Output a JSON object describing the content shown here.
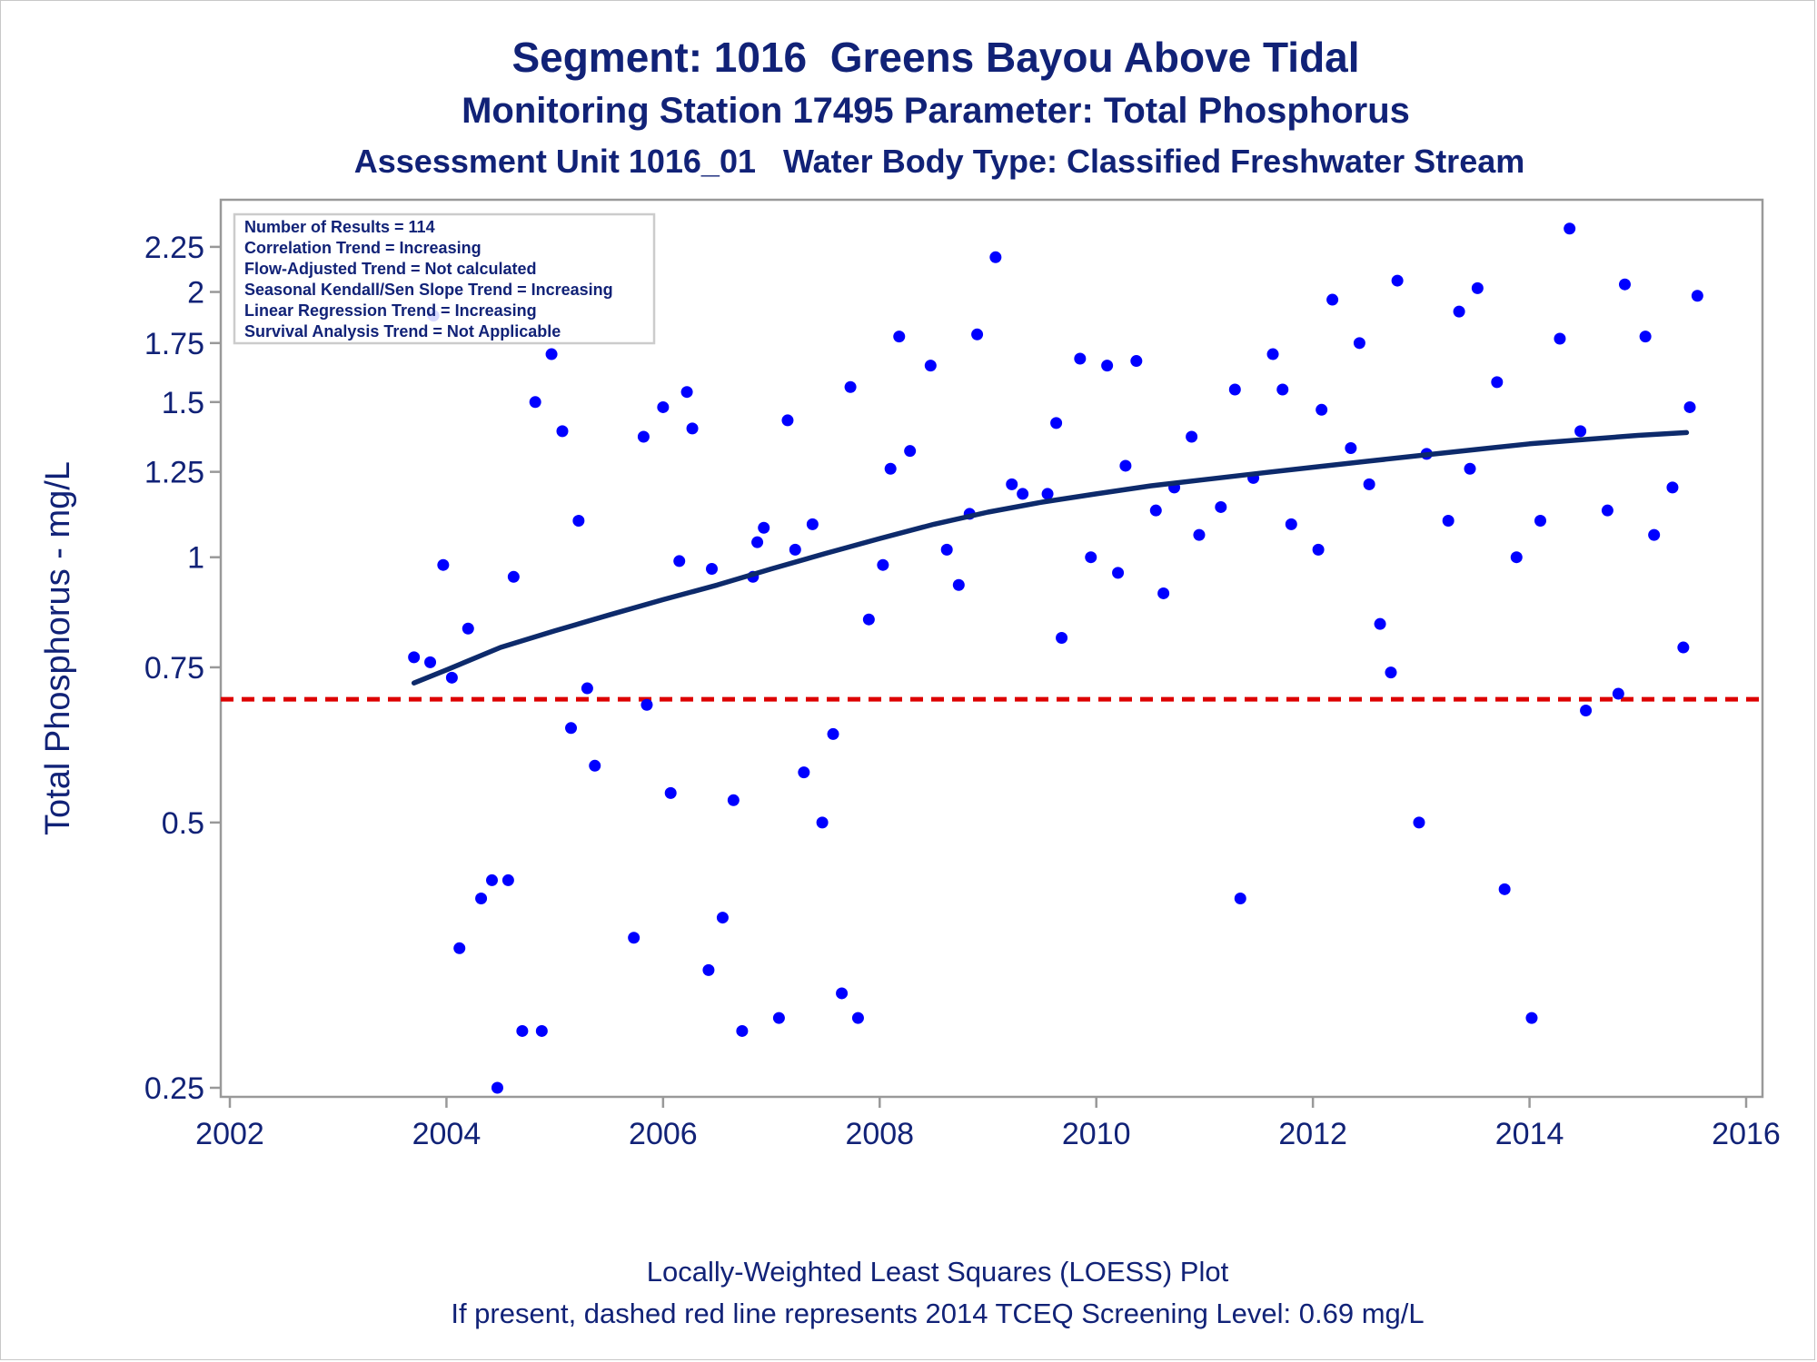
{
  "titles": {
    "line1": "Segment: 1016  Greens Bayou Above Tidal",
    "line2": "Monitoring Station 17495 Parameter: Total Phosphorus",
    "line3": "Assessment Unit 1016_01   Water Body Type: Classified Freshwater Stream"
  },
  "footnotes": {
    "line1": "Locally-Weighted Least Squares (LOESS) Plot",
    "line2": "If present, dashed red line represents 2014 TCEQ Screening Level: 0.69 mg/L"
  },
  "inset_box": {
    "lines": [
      "Number of Results = 114",
      "Correlation Trend = Increasing",
      "Flow-Adjusted Trend = Not calculated",
      "Seasonal Kendall/Sen Slope Trend = Increasing",
      "Linear Regression Trend = Increasing",
      "Survival Analysis Trend = Not Applicable"
    ]
  },
  "colors": {
    "text": "#112277",
    "points": "#0000ff",
    "loess": "#0d2a6b",
    "screening_line": "#dd0000",
    "axis": "#999999"
  },
  "chart_data": {
    "type": "scatter",
    "title": "Segment: 1016  Greens Bayou Above Tidal",
    "ylabel": "Total Phosphorus - mg/L",
    "xlabel": "",
    "y_scale": "log",
    "xlim": [
      2002,
      2016
    ],
    "ylim": [
      0.25,
      2.45
    ],
    "x_ticks": [
      2002,
      2004,
      2006,
      2008,
      2010,
      2012,
      2014,
      2016
    ],
    "y_ticks": [
      0.25,
      0.5,
      0.75,
      1,
      1.25,
      1.5,
      1.75,
      2,
      2.25
    ],
    "grid": false,
    "screening_level": 0.69,
    "points": [
      [
        2003.7,
        0.77
      ],
      [
        2003.85,
        0.76
      ],
      [
        2003.88,
        1.88
      ],
      [
        2003.97,
        0.98
      ],
      [
        2004.05,
        0.73
      ],
      [
        2004.12,
        0.36
      ],
      [
        2004.2,
        0.83
      ],
      [
        2004.32,
        0.41
      ],
      [
        2004.42,
        0.43
      ],
      [
        2004.47,
        0.25
      ],
      [
        2004.57,
        0.43
      ],
      [
        2004.62,
        0.95
      ],
      [
        2004.7,
        0.29
      ],
      [
        2004.82,
        1.5
      ],
      [
        2004.88,
        0.29
      ],
      [
        2004.97,
        1.7
      ],
      [
        2005.07,
        1.39
      ],
      [
        2005.15,
        0.64
      ],
      [
        2005.22,
        1.1
      ],
      [
        2005.3,
        0.71
      ],
      [
        2005.37,
        0.58
      ],
      [
        2005.73,
        0.37
      ],
      [
        2005.82,
        1.37
      ],
      [
        2005.85,
        0.68
      ],
      [
        2006.0,
        1.48
      ],
      [
        2006.07,
        0.54
      ],
      [
        2006.15,
        0.99
      ],
      [
        2006.22,
        1.54
      ],
      [
        2006.27,
        1.4
      ],
      [
        2006.42,
        0.34
      ],
      [
        2006.45,
        0.97
      ],
      [
        2006.55,
        0.39
      ],
      [
        2006.65,
        0.53
      ],
      [
        2006.73,
        0.29
      ],
      [
        2006.83,
        0.95
      ],
      [
        2006.87,
        1.04
      ],
      [
        2006.93,
        1.08
      ],
      [
        2007.07,
        0.3
      ],
      [
        2007.15,
        1.43
      ],
      [
        2007.22,
        1.02
      ],
      [
        2007.3,
        0.57
      ],
      [
        2007.38,
        1.09
      ],
      [
        2007.47,
        0.5
      ],
      [
        2007.57,
        0.63
      ],
      [
        2007.65,
        0.32
      ],
      [
        2007.73,
        1.56
      ],
      [
        2007.8,
        0.3
      ],
      [
        2007.9,
        0.85
      ],
      [
        2008.03,
        0.98
      ],
      [
        2008.1,
        1.26
      ],
      [
        2008.18,
        1.78
      ],
      [
        2008.28,
        1.32
      ],
      [
        2008.47,
        1.65
      ],
      [
        2008.62,
        1.02
      ],
      [
        2008.73,
        0.93
      ],
      [
        2008.83,
        1.12
      ],
      [
        2008.9,
        1.79
      ],
      [
        2009.07,
        2.19
      ],
      [
        2009.22,
        1.21
      ],
      [
        2009.32,
        1.18
      ],
      [
        2009.55,
        1.18
      ],
      [
        2009.63,
        1.42
      ],
      [
        2009.68,
        0.81
      ],
      [
        2009.85,
        1.68
      ],
      [
        2009.95,
        1.0
      ],
      [
        2010.1,
        1.65
      ],
      [
        2010.2,
        0.96
      ],
      [
        2010.27,
        1.27
      ],
      [
        2010.37,
        1.67
      ],
      [
        2010.55,
        1.13
      ],
      [
        2010.62,
        0.91
      ],
      [
        2010.72,
        1.2
      ],
      [
        2010.88,
        1.37
      ],
      [
        2010.95,
        1.06
      ],
      [
        2011.15,
        1.14
      ],
      [
        2011.28,
        1.55
      ],
      [
        2011.33,
        0.41
      ],
      [
        2011.45,
        1.23
      ],
      [
        2011.63,
        1.7
      ],
      [
        2011.72,
        1.55
      ],
      [
        2011.8,
        1.09
      ],
      [
        2012.05,
        1.02
      ],
      [
        2012.08,
        1.47
      ],
      [
        2012.18,
        1.96
      ],
      [
        2012.35,
        1.33
      ],
      [
        2012.43,
        1.75
      ],
      [
        2012.52,
        1.21
      ],
      [
        2012.62,
        0.84
      ],
      [
        2012.72,
        0.74
      ],
      [
        2012.78,
        2.06
      ],
      [
        2012.98,
        0.5
      ],
      [
        2013.05,
        1.31
      ],
      [
        2013.25,
        1.1
      ],
      [
        2013.35,
        1.9
      ],
      [
        2013.45,
        1.26
      ],
      [
        2013.52,
        2.02
      ],
      [
        2013.7,
        1.58
      ],
      [
        2013.77,
        0.42
      ],
      [
        2013.88,
        1.0
      ],
      [
        2014.02,
        0.3
      ],
      [
        2014.1,
        1.1
      ],
      [
        2014.28,
        1.77
      ],
      [
        2014.37,
        2.36
      ],
      [
        2014.47,
        1.39
      ],
      [
        2014.52,
        0.67
      ],
      [
        2014.72,
        1.13
      ],
      [
        2014.82,
        0.7
      ],
      [
        2014.88,
        2.04
      ],
      [
        2015.07,
        1.78
      ],
      [
        2015.15,
        1.06
      ],
      [
        2015.32,
        1.2
      ],
      [
        2015.42,
        0.79
      ],
      [
        2015.48,
        1.48
      ],
      [
        2015.55,
        1.98
      ]
    ],
    "loess": [
      [
        2003.7,
        0.72
      ],
      [
        2004.0,
        0.745
      ],
      [
        2004.5,
        0.79
      ],
      [
        2005.0,
        0.825
      ],
      [
        2005.5,
        0.86
      ],
      [
        2006.0,
        0.895
      ],
      [
        2006.5,
        0.93
      ],
      [
        2007.0,
        0.97
      ],
      [
        2007.5,
        1.01
      ],
      [
        2008.0,
        1.05
      ],
      [
        2008.5,
        1.09
      ],
      [
        2009.0,
        1.125
      ],
      [
        2009.5,
        1.155
      ],
      [
        2010.0,
        1.18
      ],
      [
        2010.5,
        1.205
      ],
      [
        2011.0,
        1.225
      ],
      [
        2011.5,
        1.245
      ],
      [
        2012.0,
        1.265
      ],
      [
        2012.5,
        1.285
      ],
      [
        2013.0,
        1.305
      ],
      [
        2013.5,
        1.325
      ],
      [
        2014.0,
        1.345
      ],
      [
        2014.5,
        1.36
      ],
      [
        2015.0,
        1.375
      ],
      [
        2015.45,
        1.385
      ]
    ]
  }
}
